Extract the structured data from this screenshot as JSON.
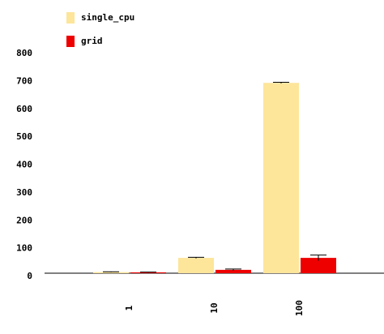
{
  "chart_data": {
    "type": "bar",
    "categories": [
      "1",
      "10",
      "100"
    ],
    "series": [
      {
        "name": "single_cpu",
        "color": "#fde59a",
        "values": [
          4,
          55,
          683
        ],
        "errors": [
          1,
          2,
          2
        ]
      },
      {
        "name": "grid",
        "color": "#ee0000",
        "values": [
          3,
          12,
          55
        ],
        "errors": [
          1,
          3,
          10
        ]
      }
    ],
    "ylim": [
      0,
      800
    ],
    "yticks": [
      0,
      100,
      200,
      300,
      400,
      500,
      600,
      700,
      800
    ]
  }
}
